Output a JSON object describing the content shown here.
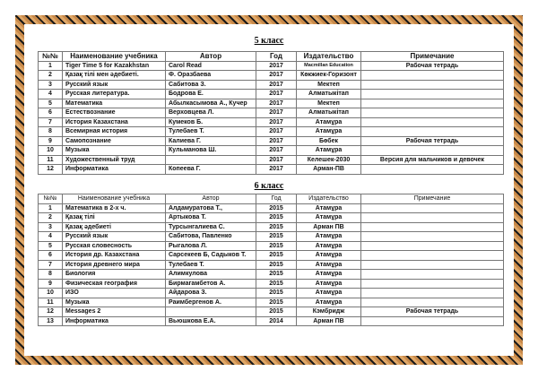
{
  "grade5": {
    "title": "5 класс",
    "headers": [
      "№№",
      "Наименование учебника",
      "Автор",
      "Год",
      "Издательство",
      "Примечание"
    ],
    "rows": [
      [
        "1",
        "Tiger Time 5 for Kazakhstan",
        "Carol Read",
        "2017",
        "Macmillan Education",
        "Рабочая тетрадь"
      ],
      [
        "2",
        "Қазақ тілі  мен әдебиеті.",
        "Ф. Оразбаева",
        "2017",
        "Көкжиек-Горизонт",
        ""
      ],
      [
        "3",
        "Русский язык",
        "Сабитова З.",
        "2017",
        "Мектеп",
        ""
      ],
      [
        "4",
        "Русская литература.",
        "Бодрова Е.",
        "2017",
        "Алматыкітап",
        ""
      ],
      [
        "5",
        "Математика",
        "Абылкасымова А., Кучер",
        "2017",
        "Мектеп",
        ""
      ],
      [
        "6",
        "Естествознание",
        "Верховцева Л.",
        "2017",
        "Алматыкітап",
        ""
      ],
      [
        "7",
        "История Казахстана",
        "Кумеков Б.",
        "2017",
        "Атамұра",
        ""
      ],
      [
        "8",
        "Всемирная история",
        "Тулебаев Т.",
        "2017",
        "Атамұра",
        ""
      ],
      [
        "9",
        "Самопознание",
        "Калиева Г.",
        "2017",
        "Бөбек",
        "Рабочая тетрадь"
      ],
      [
        "10",
        "Музыка",
        "Кульманова Ш.",
        "2017",
        "Атамұра",
        ""
      ],
      [
        "11",
        "Художественный труд",
        "",
        "2017",
        "Келешек-2030",
        "Версия для мальчиков и девочек"
      ],
      [
        "12",
        "Информатика",
        "Копеева Г.",
        "2017",
        "Арман-ПВ",
        ""
      ]
    ]
  },
  "grade6": {
    "title": "6 класс",
    "headers": [
      "№№",
      "Наименование учебника",
      "Автор",
      "Год",
      "Издательство",
      "Примечание"
    ],
    "rows": [
      [
        "1",
        "Математика в 2-х ч.",
        "Алдамуратова Т.,",
        "2015",
        "Атамұра",
        ""
      ],
      [
        "2",
        "Қазақ тілі",
        "Артыкова Т.",
        "2015",
        "Атамұра",
        ""
      ],
      [
        "3",
        "Қазақ әдебиеті",
        "Турсынгалиева С.",
        "2015",
        "Арман ПВ",
        ""
      ],
      [
        "4",
        "Русский язык",
        "Сабитова, Павленко",
        "2015",
        "Атамұра",
        ""
      ],
      [
        "5",
        "Русская словесность",
        "Рыгалова Л.",
        "2015",
        "Атамұра",
        ""
      ],
      [
        "6",
        "История др. Казахстана",
        "Сарсекеев Б, Садыков Т.",
        "2015",
        "Атамұра",
        ""
      ],
      [
        "7",
        "История древнего мира",
        "Тулебаев Т.",
        "2015",
        "Атамұра",
        ""
      ],
      [
        "8",
        "Биология",
        "Алимкулова",
        "2015",
        "Атамұра",
        ""
      ],
      [
        "9",
        "Физическая география",
        "Бирмагамбетов А.",
        "2015",
        "Атамұра",
        ""
      ],
      [
        "10",
        "ИЗО",
        "Айдарова З.",
        "2015",
        "Атамұра",
        ""
      ],
      [
        "11",
        "Музыка",
        "Раимбергенов А.",
        "2015",
        "Атамұра",
        ""
      ],
      [
        "12",
        "Messages 2",
        "",
        "2015",
        "Кэмбридж",
        "Рабочая тетрадь"
      ],
      [
        "13",
        "Информатика",
        " Вьюшкова Е.А.",
        "2014",
        "Арман ПВ",
        ""
      ]
    ]
  }
}
